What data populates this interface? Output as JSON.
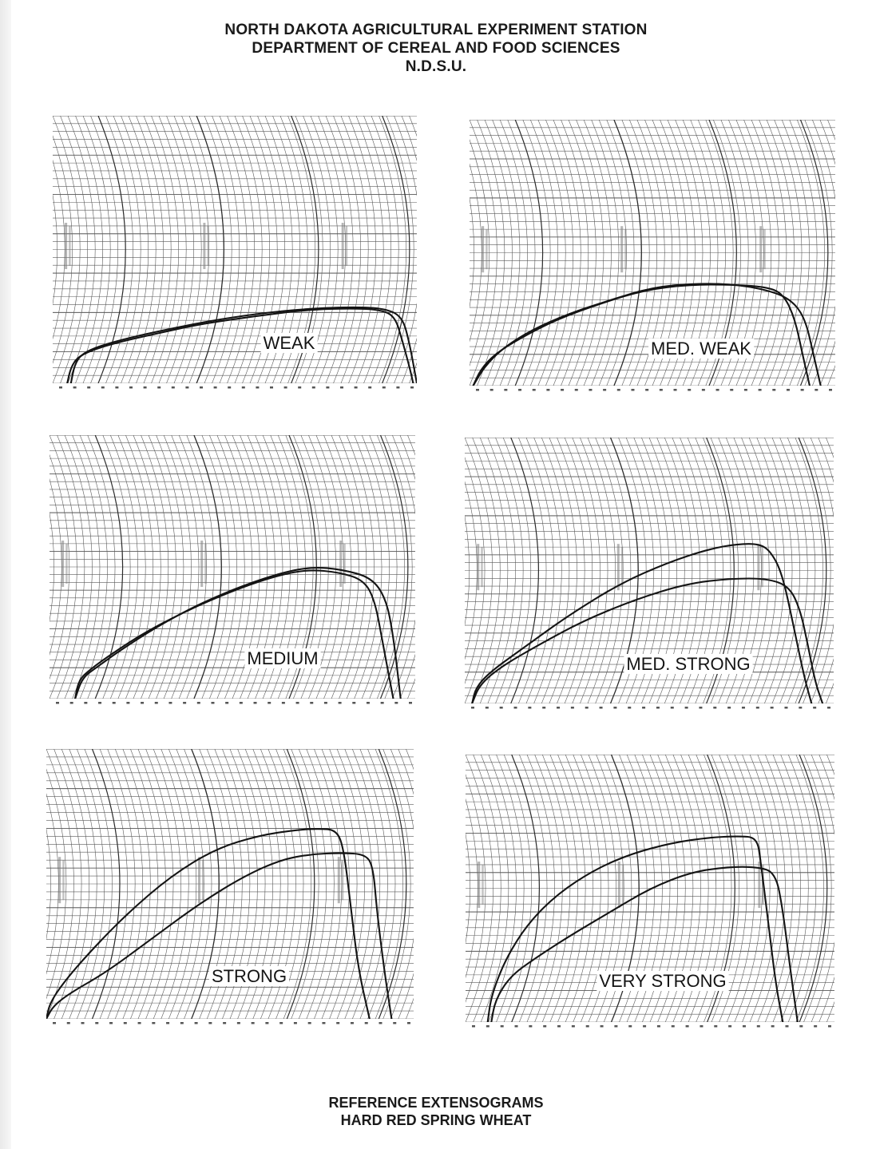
{
  "header": {
    "line1": "NORTH DAKOTA AGRICULTURAL EXPERIMENT STATION",
    "line2": "DEPARTMENT OF CEREAL AND FOOD SCIENCES",
    "line3": "N.D.S.U."
  },
  "footer": {
    "line1": "REFERENCE EXTENSOGRAMS",
    "line2": "HARD RED SPRING WHEAT"
  },
  "colors": {
    "paper": "#ffffff",
    "ink": "#141414",
    "grid": "#3a3a3a"
  },
  "chart_data": [
    {
      "type": "line",
      "title": "WEAK",
      "grid": true,
      "xlim": [
        0,
        100
      ],
      "ylim": [
        0,
        100
      ],
      "series": [
        {
          "points": [
            [
              4,
              0
            ],
            [
              5,
              6
            ],
            [
              7,
              10
            ],
            [
              12,
              13
            ],
            [
              20,
              16
            ],
            [
              30,
              19
            ],
            [
              40,
              22
            ],
            [
              55,
              25
            ],
            [
              70,
              27.5
            ],
            [
              82,
              28
            ],
            [
              90,
              27.5
            ],
            [
              94,
              25
            ],
            [
              96,
              16
            ],
            [
              98,
              6
            ],
            [
              99,
              0
            ]
          ]
        },
        {
          "points": [
            [
              5,
              0
            ],
            [
              6,
              7
            ],
            [
              8,
              11
            ],
            [
              13,
              14
            ],
            [
              21,
              17
            ],
            [
              31,
              20
            ],
            [
              42,
              23
            ],
            [
              56,
              26
            ],
            [
              71,
              28
            ],
            [
              83,
              28.5
            ],
            [
              91,
              28
            ],
            [
              96,
              25
            ],
            [
              98,
              15
            ],
            [
              100,
              0
            ]
          ]
        }
      ]
    },
    {
      "type": "line",
      "title": "MED. WEAK",
      "grid": true,
      "xlim": [
        0,
        100
      ],
      "ylim": [
        0,
        100
      ],
      "series": [
        {
          "points": [
            [
              1,
              0
            ],
            [
              3,
              6
            ],
            [
              7,
              12
            ],
            [
              14,
              18
            ],
            [
              24,
              25
            ],
            [
              36,
              31
            ],
            [
              48,
              36
            ],
            [
              60,
              38
            ],
            [
              72,
              38
            ],
            [
              82,
              37
            ],
            [
              86,
              34
            ],
            [
              89,
              25
            ],
            [
              91,
              12
            ],
            [
              93,
              0
            ]
          ]
        },
        {
          "points": [
            [
              1,
              0
            ],
            [
              4,
              7
            ],
            [
              9,
              14
            ],
            [
              17,
              21
            ],
            [
              27,
              27
            ],
            [
              38,
              32
            ],
            [
              50,
              37
            ],
            [
              62,
              38.5
            ],
            [
              74,
              38
            ],
            [
              84,
              35
            ],
            [
              89,
              31
            ],
            [
              92,
              24
            ],
            [
              94,
              12
            ],
            [
              96,
              0
            ]
          ]
        }
      ]
    },
    {
      "type": "line",
      "title": "MEDIUM",
      "grid": true,
      "xlim": [
        0,
        100
      ],
      "ylim": [
        0,
        100
      ],
      "series": [
        {
          "points": [
            [
              7,
              0
            ],
            [
              8,
              7
            ],
            [
              11,
              11
            ],
            [
              17,
              17
            ],
            [
              27,
              26
            ],
            [
              40,
              35
            ],
            [
              52,
              42
            ],
            [
              63,
              47
            ],
            [
              71,
              49
            ],
            [
              79,
              48
            ],
            [
              86,
              45
            ],
            [
              89,
              37
            ],
            [
              91,
              22
            ],
            [
              94,
              0
            ]
          ]
        },
        {
          "points": [
            [
              7,
              0
            ],
            [
              9,
              8
            ],
            [
              13,
              12
            ],
            [
              19,
              18
            ],
            [
              29,
              27
            ],
            [
              41,
              36
            ],
            [
              53,
              43
            ],
            [
              64,
              48
            ],
            [
              72,
              50
            ],
            [
              80,
              49
            ],
            [
              88,
              46
            ],
            [
              92,
              38
            ],
            [
              94,
              24
            ],
            [
              96,
              0
            ]
          ]
        }
      ]
    },
    {
      "type": "line",
      "title": "MED. STRONG",
      "grid": true,
      "xlim": [
        0,
        100
      ],
      "ylim": [
        0,
        100
      ],
      "series": [
        {
          "points": [
            [
              2,
              0
            ],
            [
              3,
              6
            ],
            [
              7,
              12
            ],
            [
              16,
              21
            ],
            [
              28,
              33
            ],
            [
              42,
              45
            ],
            [
              55,
              53
            ],
            [
              66,
              58
            ],
            [
              74,
              60
            ],
            [
              80,
              60
            ],
            [
              83,
              57
            ],
            [
              86,
              49
            ],
            [
              89,
              30
            ],
            [
              92,
              10
            ],
            [
              94,
              0
            ]
          ]
        },
        {
          "points": [
            [
              2,
              0
            ],
            [
              4,
              7
            ],
            [
              10,
              14
            ],
            [
              20,
              22
            ],
            [
              32,
              31
            ],
            [
              46,
              39
            ],
            [
              60,
              45
            ],
            [
              72,
              47
            ],
            [
              82,
              47
            ],
            [
              88,
              44
            ],
            [
              91,
              35
            ],
            [
              93,
              22
            ],
            [
              95,
              8
            ],
            [
              97,
              0
            ]
          ]
        }
      ]
    },
    {
      "type": "line",
      "title": "STRONG",
      "grid": true,
      "xlim": [
        0,
        100
      ],
      "ylim": [
        0,
        100
      ],
      "series": [
        {
          "points": [
            [
              0,
              0
            ],
            [
              1,
              6
            ],
            [
              5,
              14
            ],
            [
              12,
              25
            ],
            [
              22,
              39
            ],
            [
              34,
              53
            ],
            [
              46,
              63
            ],
            [
              58,
              68
            ],
            [
              68,
              70
            ],
            [
              74,
              70.5
            ],
            [
              79,
              70
            ],
            [
              81,
              63
            ],
            [
              83,
              40
            ],
            [
              85,
              18
            ],
            [
              88,
              0
            ]
          ]
        },
        {
          "points": [
            [
              0,
              0
            ],
            [
              2,
              5
            ],
            [
              7,
              10
            ],
            [
              16,
              17
            ],
            [
              28,
              29
            ],
            [
              42,
              43
            ],
            [
              54,
              53
            ],
            [
              64,
              59
            ],
            [
              72,
              61
            ],
            [
              80,
              61.5
            ],
            [
              87,
              61
            ],
            [
              89,
              56
            ],
            [
              90,
              40
            ],
            [
              92,
              18
            ],
            [
              94,
              0
            ]
          ]
        }
      ]
    },
    {
      "type": "line",
      "title": "VERY STRONG",
      "grid": true,
      "xlim": [
        0,
        100
      ],
      "ylim": [
        0,
        100
      ],
      "series": [
        {
          "points": [
            [
              6,
              0
            ],
            [
              7,
              10
            ],
            [
              11,
              24
            ],
            [
              17,
              37
            ],
            [
              25,
              48
            ],
            [
              35,
              57
            ],
            [
              45,
              63
            ],
            [
              56,
              67
            ],
            [
              66,
              69
            ],
            [
              74,
              69.5
            ],
            [
              79,
              69
            ],
            [
              80,
              60
            ],
            [
              82,
              38
            ],
            [
              84,
              15
            ],
            [
              86,
              0
            ]
          ]
        },
        {
          "points": [
            [
              7,
              0
            ],
            [
              8,
              8
            ],
            [
              12,
              17
            ],
            [
              19,
              24
            ],
            [
              28,
              32
            ],
            [
              39,
              41
            ],
            [
              50,
              50
            ],
            [
              61,
              56
            ],
            [
              71,
              58
            ],
            [
              79,
              58
            ],
            [
              84,
              56
            ],
            [
              86,
              42
            ],
            [
              88,
              20
            ],
            [
              90,
              0
            ]
          ]
        }
      ]
    }
  ]
}
